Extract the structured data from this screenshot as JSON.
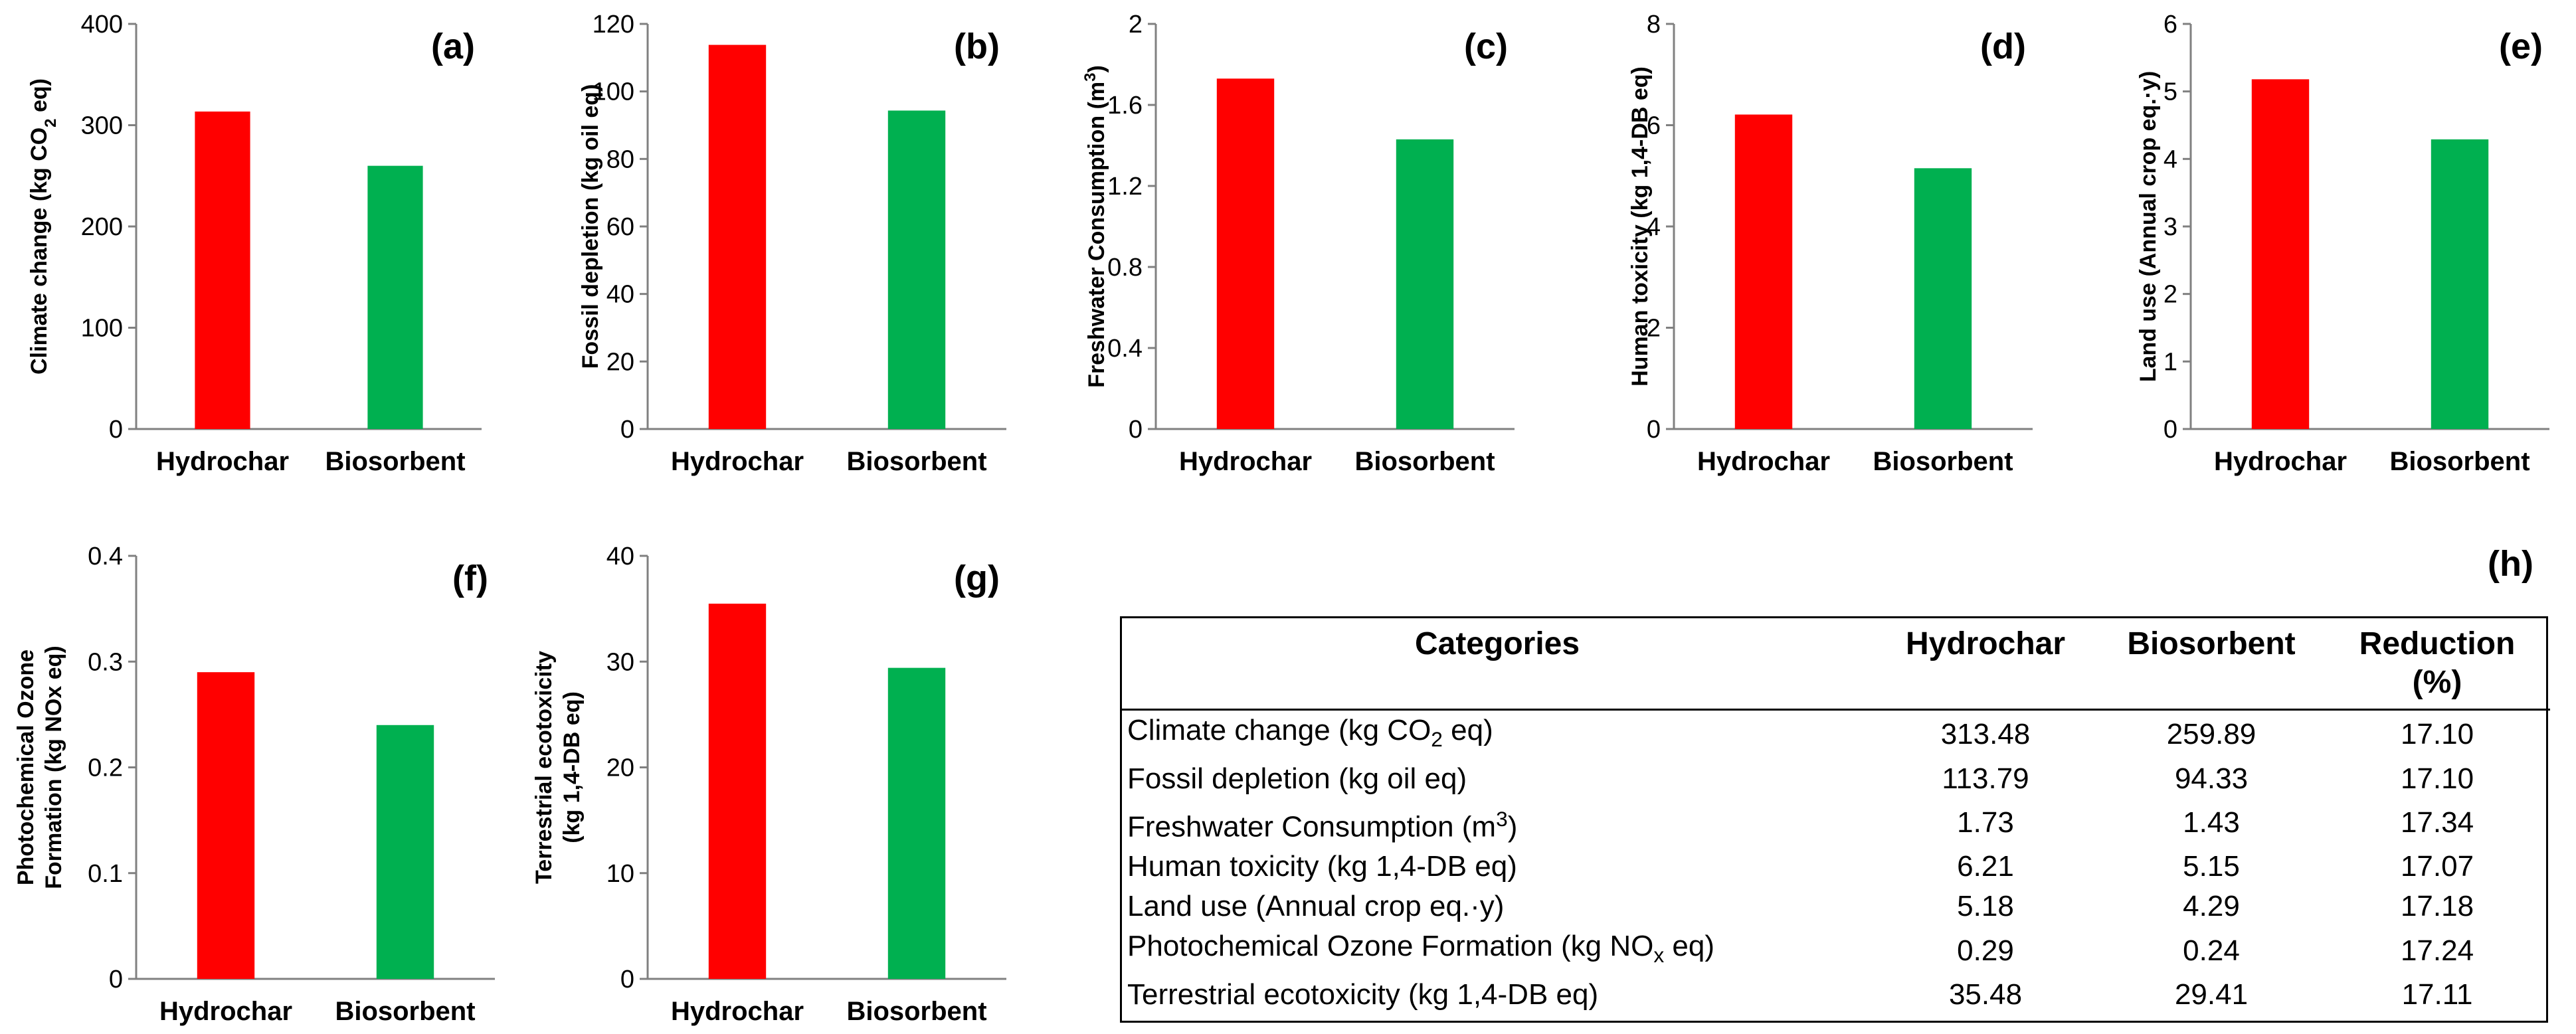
{
  "colors": {
    "hydrochar": "#ff0000",
    "biosorbent": "#00b050",
    "axis": "#808080"
  },
  "chart_data": [
    {
      "id": "a",
      "type": "bar",
      "panel_label": "(a)",
      "ylabel_parts": {
        "pre": "Climate change (kg CO",
        "sub": "2",
        "post": " eq)"
      },
      "categories": [
        "Hydrochar",
        "Biosorbent"
      ],
      "values": [
        313.48,
        259.89
      ],
      "ylim": [
        0,
        400
      ],
      "yticks": [
        0,
        100,
        200,
        300,
        400
      ],
      "tick_labels": [
        "0",
        "100",
        "200",
        "300",
        "400"
      ]
    },
    {
      "id": "b",
      "type": "bar",
      "panel_label": "(b)",
      "ylabel_parts": {
        "pre": "Fossil depletion (kg oil eq)",
        "sub": "",
        "post": ""
      },
      "categories": [
        "Hydrochar",
        "Biosorbent"
      ],
      "values": [
        113.79,
        94.33
      ],
      "ylim": [
        0,
        120
      ],
      "yticks": [
        0,
        20,
        40,
        60,
        80,
        100,
        120
      ],
      "tick_labels": [
        "0",
        "20",
        "40",
        "60",
        "80",
        "100",
        "120"
      ]
    },
    {
      "id": "c",
      "type": "bar",
      "panel_label": "(c)",
      "ylabel_parts": {
        "pre": "Freshwater Consumption  (m",
        "sup": "3",
        "post": ")"
      },
      "categories": [
        "Hydrochar",
        "Biosorbent"
      ],
      "values": [
        1.73,
        1.43
      ],
      "ylim": [
        0,
        2
      ],
      "yticks": [
        0,
        0.4,
        0.8,
        1.2,
        1.6,
        2
      ],
      "tick_labels": [
        "0",
        "0.4",
        "0.8",
        "1.2",
        "1.6",
        "2"
      ]
    },
    {
      "id": "d",
      "type": "bar",
      "panel_label": "(d)",
      "ylabel_parts": {
        "pre": "Human toxicity  (kg 1,4-DB eq)",
        "sub": "",
        "post": ""
      },
      "categories": [
        "Hydrochar",
        "Biosorbent"
      ],
      "values": [
        6.21,
        5.15
      ],
      "ylim": [
        0,
        8
      ],
      "yticks": [
        0,
        2,
        4,
        6,
        8
      ],
      "tick_labels": [
        "0",
        "2",
        "4",
        "6",
        "8"
      ]
    },
    {
      "id": "e",
      "type": "bar",
      "panel_label": "(e)",
      "ylabel_parts": {
        "pre": "Land use (Annual crop eq.·y)",
        "sub": "",
        "post": ""
      },
      "categories": [
        "Hydrochar",
        "Biosorbent"
      ],
      "values": [
        5.18,
        4.29
      ],
      "ylim": [
        0,
        6
      ],
      "yticks": [
        0,
        1,
        2,
        3,
        4,
        5,
        6
      ],
      "tick_labels": [
        "0",
        "1",
        "2",
        "3",
        "4",
        "5",
        "6"
      ]
    },
    {
      "id": "f",
      "type": "bar",
      "panel_label": "(f)",
      "ylabel_lines": [
        "Photochemical Ozone",
        "Formation (kg NOx eq)"
      ],
      "categories": [
        "Hydrochar",
        "Biosorbent"
      ],
      "values": [
        0.29,
        0.24
      ],
      "ylim": [
        0,
        0.4
      ],
      "yticks": [
        0,
        0.1,
        0.2,
        0.3,
        0.4
      ],
      "tick_labels": [
        "0",
        "0.1",
        "0.2",
        "0.3",
        "0.4"
      ]
    },
    {
      "id": "g",
      "type": "bar",
      "panel_label": "(g)",
      "ylabel_lines": [
        "Terrestrial ecotoxicity",
        "(kg 1,4-DB eq)"
      ],
      "categories": [
        "Hydrochar",
        "Biosorbent"
      ],
      "values": [
        35.48,
        29.41
      ],
      "ylim": [
        0,
        40
      ],
      "yticks": [
        0,
        10,
        20,
        30,
        40
      ],
      "tick_labels": [
        "0",
        "10",
        "20",
        "30",
        "40"
      ]
    }
  ],
  "table": {
    "panel_label": "(h)",
    "headers": {
      "categories": "Categories",
      "hydrochar": "Hydrochar",
      "biosorbent": "Biosorbent",
      "reduction": "Reduction",
      "reduction_unit": "(%)"
    },
    "rows": [
      {
        "pre": "Climate change (kg CO",
        "sub": "2",
        "sup": "",
        "post": " eq)",
        "hydrochar": "313.48",
        "biosorbent": "259.89",
        "reduction": "17.10"
      },
      {
        "pre": "Fossil depletion (kg oil eq)",
        "sub": "",
        "sup": "",
        "post": "",
        "hydrochar": "113.79",
        "biosorbent": "94.33",
        "reduction": "17.10"
      },
      {
        "pre": "Freshwater Consumption (m",
        "sub": "",
        "sup": "3",
        "post": ")",
        "hydrochar": "1.73",
        "biosorbent": "1.43",
        "reduction": "17.34"
      },
      {
        "pre": "Human toxicity  (kg 1,4-DB eq)",
        "sub": "",
        "sup": "",
        "post": "",
        "hydrochar": "6.21",
        "biosorbent": "5.15",
        "reduction": "17.07"
      },
      {
        "pre": "Land use (Annual crop eq.·y)",
        "sub": "",
        "sup": "",
        "post": "",
        "hydrochar": "5.18",
        "biosorbent": "4.29",
        "reduction": "17.18"
      },
      {
        "pre": "Photochemical Ozone Formation (kg NO",
        "sub": "x",
        "sup": "",
        "post": " eq)",
        "hydrochar": "0.29",
        "biosorbent": "0.24",
        "reduction": "17.24"
      },
      {
        "pre": "Terrestrial ecotoxicity (kg 1,4-DB eq)",
        "sub": "",
        "sup": "",
        "post": "",
        "hydrochar": "35.48",
        "biosorbent": "29.41",
        "reduction": "17.11"
      }
    ]
  }
}
